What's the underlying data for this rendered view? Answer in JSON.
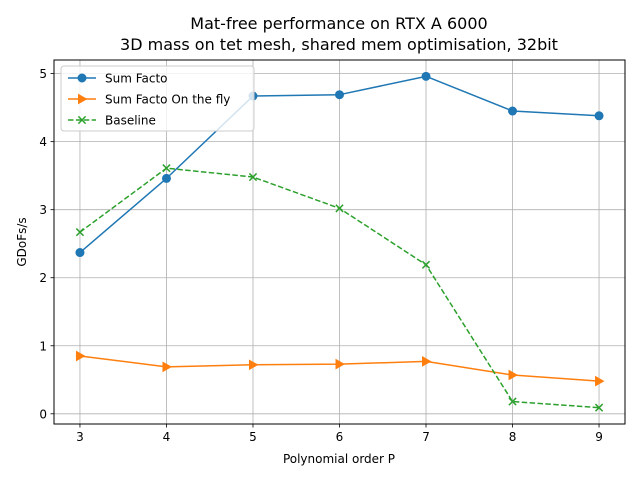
{
  "chart_data": {
    "type": "line",
    "title_line1": "Mat-free performance on RTX A 6000",
    "title_line2": "3D mass on tet mesh, shared mem optimisation, 32bit",
    "xlabel": "Polynomial order P",
    "ylabel": "GDoFs/s",
    "x": [
      3,
      4,
      5,
      6,
      7,
      8,
      9
    ],
    "xlim": [
      2.7,
      9.3
    ],
    "ylim": [
      -0.15,
      5.2
    ],
    "xticks": [
      "3",
      "4",
      "5",
      "6",
      "7",
      "8",
      "9"
    ],
    "yticks": [
      "0",
      "1",
      "2",
      "3",
      "4",
      "5"
    ],
    "grid": true,
    "legend_position": "top-left",
    "series": [
      {
        "name": "Sum Facto",
        "color": "#1f77b4",
        "marker": "circle",
        "linestyle": "solid",
        "values": [
          2.37,
          3.46,
          4.67,
          4.69,
          4.96,
          4.45,
          4.38
        ]
      },
      {
        "name": "Sum Facto On the fly",
        "color": "#ff7f0e",
        "marker": "triangle-right",
        "linestyle": "solid",
        "values": [
          0.85,
          0.69,
          0.72,
          0.73,
          0.77,
          0.57,
          0.48
        ]
      },
      {
        "name": "Baseline",
        "color": "#2ca02c",
        "marker": "x",
        "linestyle": "dashed",
        "values": [
          2.67,
          3.61,
          3.48,
          3.02,
          2.19,
          0.18,
          0.09
        ]
      }
    ]
  }
}
